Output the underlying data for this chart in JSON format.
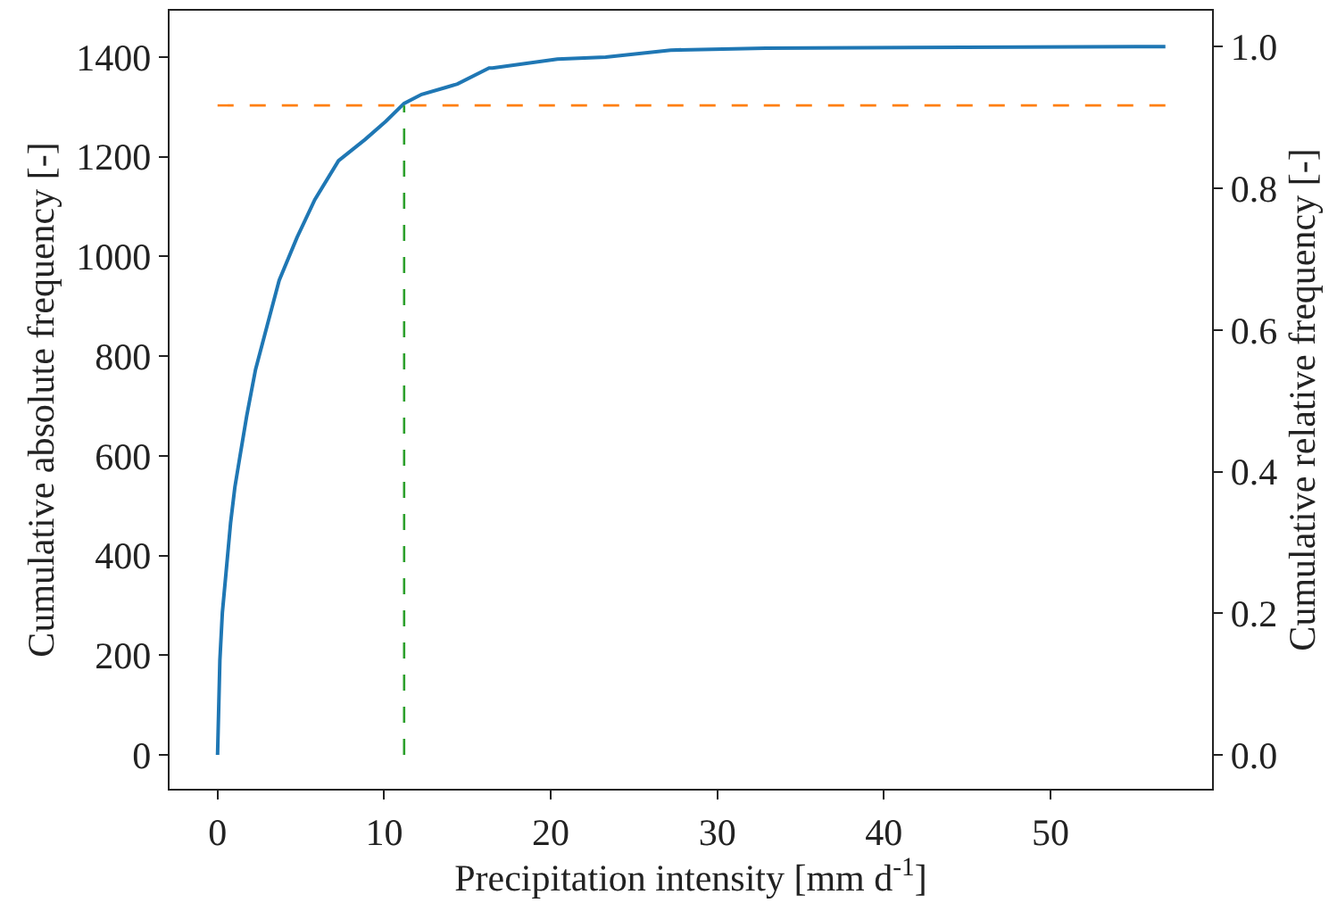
{
  "chart_data": {
    "type": "line",
    "xlabel": "Precipitation intensity [mm d$^{-1}$]",
    "ylabel": "Cumulative absolute frequency [-]",
    "y2label": "Cumulative relative frequency [-]",
    "series": [
      {
        "color": "#1f77b4",
        "x": [
          0,
          0.14,
          0.29,
          0.5,
          0.78,
          1.04,
          1.32,
          1.75,
          2.28,
          2.99,
          3.7,
          4.77,
          5.84,
          7.26,
          8.87,
          10.1,
          11.2,
          12.25,
          13.7,
          14.4,
          16.3,
          16.5,
          20.4,
          23.3,
          27.2,
          32.9,
          56.9
        ],
        "values": [
          0,
          190,
          286,
          362,
          465,
          537,
          594,
          680,
          773,
          863,
          952,
          1038,
          1114,
          1192,
          1235,
          1271,
          1307,
          1325,
          1339,
          1346,
          1378,
          1378,
          1396,
          1400,
          1414,
          1418,
          1421
        ]
      },
      {
        "type": "line",
        "color": "#ff7f0e",
        "line_style": "dashed",
        "x": [
          0,
          56.9
        ],
        "values": [
          1303,
          1303
        ]
      },
      {
        "type": "line",
        "color": "#2ca02c",
        "line_style": "dashed",
        "x": [
          11.2,
          11.2
        ],
        "values": [
          0,
          1303
        ]
      }
    ],
    "xlim": [
      -2.88,
      59.7
    ],
    "ylim": [
      -68,
      1493
    ],
    "y2lim": [
      -0.048,
      1.051
    ],
    "xticks": [
      0,
      10,
      20,
      30,
      40,
      50
    ],
    "yticks": [
      0,
      200,
      400,
      600,
      800,
      1000,
      1200,
      1400
    ],
    "y2ticks": [
      {
        "value": 0,
        "label": "0.0"
      },
      {
        "value": 0.2,
        "label": "0.2"
      },
      {
        "value": 0.4,
        "label": "0.4"
      },
      {
        "value": 0.6,
        "label": "0.6"
      },
      {
        "value": 0.8,
        "label": "0.8"
      },
      {
        "value": 1.0,
        "label": "1.0"
      }
    ]
  }
}
